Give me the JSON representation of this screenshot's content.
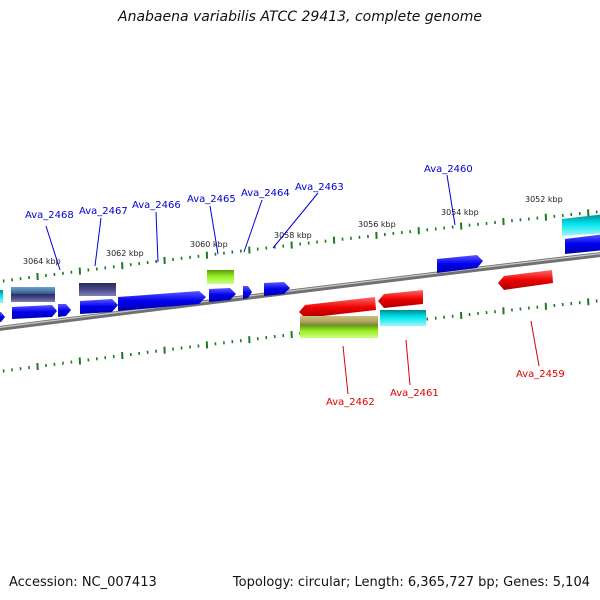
{
  "title": "Anabaena variabilis ATCC 29413, complete genome",
  "footer": {
    "accession": "Accession: NC_007413",
    "stats": "Topology: circular; Length: 6,365,727 bp; Genes: 5,104"
  },
  "colors": {
    "backbone": "#8a8a8a",
    "tick": "#1e7a1e",
    "forward_gene": "#0000ee",
    "reverse_gene": "#ee0000",
    "forward_label": "#0000cc",
    "reverse_label": "#dd0000",
    "cyan": "#00e5ee",
    "lime": "#99ee22",
    "slate": "#4a4a8a",
    "steel": "#4a7aaa",
    "olive": "#b0a860"
  },
  "scale_labels": [
    "3064 kbp",
    "3062 kbp",
    "3060 kbp",
    "3058 kbp",
    "3056 kbp",
    "3054 kbp",
    "3052 kbp"
  ],
  "genes": [
    {
      "label": "Ava_2468",
      "strand": "forward"
    },
    {
      "label": "Ava_2467",
      "strand": "forward"
    },
    {
      "label": "Ava_2466",
      "strand": "forward"
    },
    {
      "label": "Ava_2465",
      "strand": "forward"
    },
    {
      "label": "Ava_2464",
      "strand": "forward"
    },
    {
      "label": "Ava_2463",
      "strand": "forward"
    },
    {
      "label": "Ava_2460",
      "strand": "forward"
    },
    {
      "label": "Ava_2462",
      "strand": "reverse"
    },
    {
      "label": "Ava_2461",
      "strand": "reverse"
    },
    {
      "label": "Ava_2459",
      "strand": "reverse"
    }
  ]
}
